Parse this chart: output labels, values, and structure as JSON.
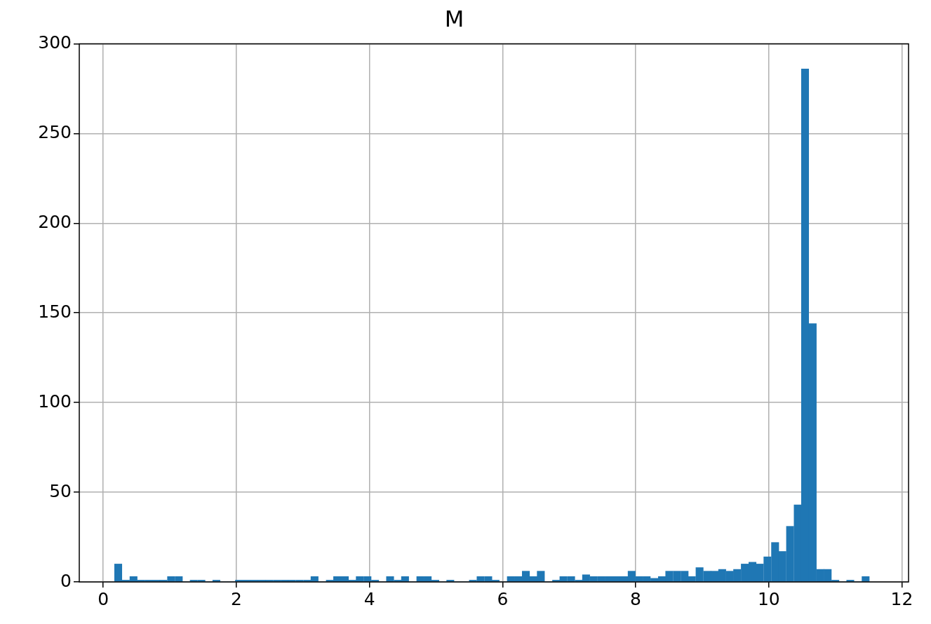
{
  "chart_data": {
    "type": "histogram",
    "title": "M",
    "color": "#1f77b4",
    "bins": [
      0.17,
      0.28,
      0.4,
      0.51,
      0.62,
      0.74,
      0.85,
      0.96,
      1.08,
      1.19,
      1.3,
      1.42,
      1.53,
      1.64,
      1.76,
      1.87,
      1.98,
      2.1,
      2.21,
      2.33,
      2.44,
      2.55,
      2.67,
      2.78,
      2.89,
      3.01,
      3.12,
      3.23,
      3.35,
      3.46,
      3.57,
      3.69,
      3.8,
      3.91,
      4.03,
      4.14,
      4.25,
      4.37,
      4.48,
      4.59,
      4.71,
      4.82,
      4.93,
      5.05,
      5.16,
      5.27,
      5.39,
      5.5,
      5.61,
      5.73,
      5.84,
      5.95,
      6.07,
      6.18,
      6.29,
      6.41,
      6.52,
      6.63,
      6.75,
      6.86,
      6.97,
      7.09,
      7.2,
      7.31,
      7.43,
      7.54,
      7.65,
      7.77,
      7.88,
      8.0,
      8.11,
      8.22,
      8.34,
      8.45,
      8.56,
      8.68,
      8.79,
      8.9,
      9.02,
      9.13,
      9.24,
      9.36,
      9.47,
      9.58,
      9.7,
      9.81,
      9.92,
      10.04,
      10.15,
      10.26,
      10.38,
      10.49,
      10.6,
      10.72,
      10.83,
      10.94,
      11.06,
      11.17,
      11.28,
      11.4,
      11.51
    ],
    "values": [
      10,
      1,
      3,
      1,
      1,
      1,
      1,
      3,
      3,
      0,
      1,
      1,
      0,
      1,
      0,
      0,
      1,
      1,
      1,
      1,
      1,
      1,
      1,
      1,
      1,
      1,
      3,
      0,
      1,
      3,
      3,
      1,
      3,
      3,
      1,
      0,
      3,
      1,
      3,
      0,
      3,
      3,
      1,
      0,
      1,
      0,
      0,
      1,
      3,
      3,
      1,
      0,
      3,
      3,
      6,
      3,
      6,
      0,
      1,
      3,
      3,
      1,
      4,
      3,
      3,
      3,
      3,
      3,
      6,
      3,
      3,
      2,
      3,
      6,
      6,
      6,
      3,
      8,
      6,
      6,
      7,
      6,
      7,
      10,
      11,
      10,
      14,
      22,
      17,
      31,
      43,
      286,
      144,
      7,
      7,
      1,
      0,
      1,
      0,
      3
    ],
    "xlim": [
      -0.36,
      12.1
    ],
    "ylim": [
      0,
      300
    ],
    "xticks": [
      0,
      2,
      4,
      6,
      8,
      10,
      12
    ],
    "yticks": [
      0,
      50,
      100,
      150,
      200,
      250,
      300
    ],
    "grid": true
  }
}
